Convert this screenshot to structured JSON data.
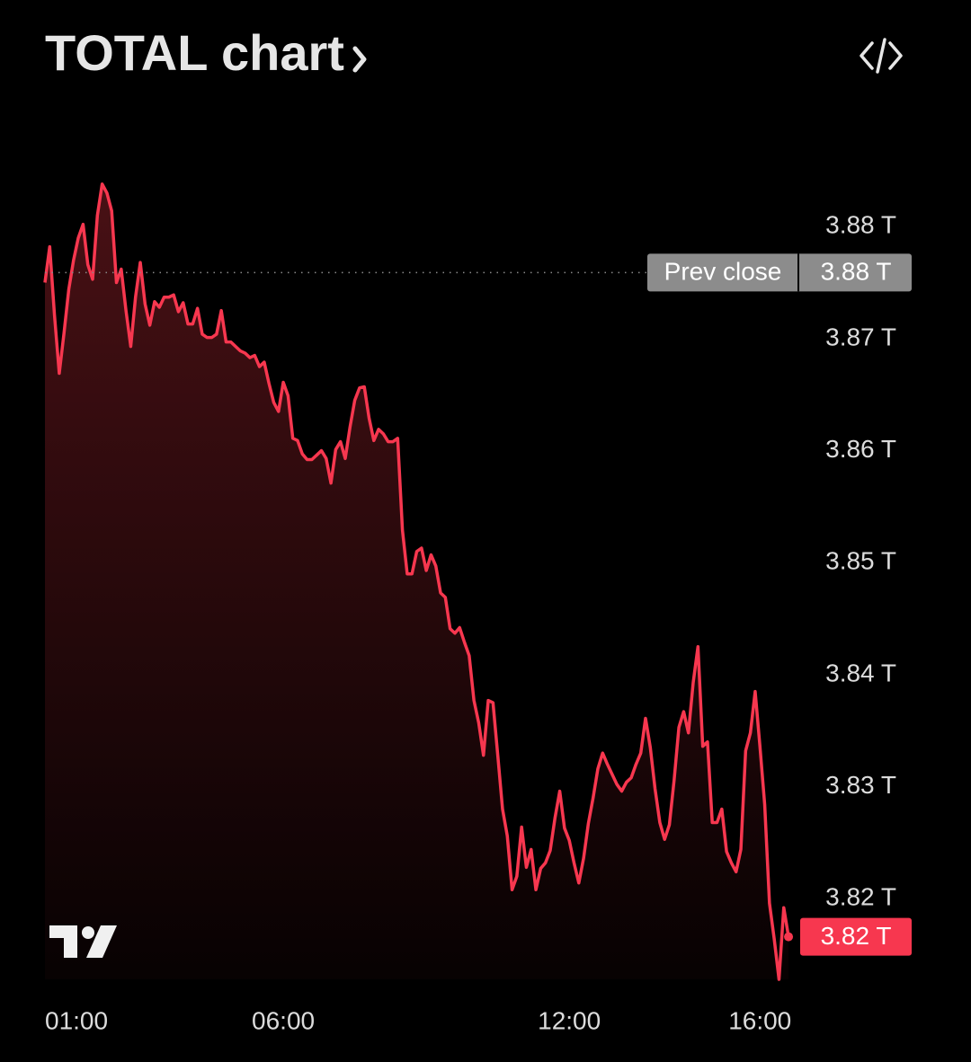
{
  "chart_data": {
    "type": "area",
    "title": "TOTAL chart",
    "color": "#f7374f",
    "x": [
      1,
      1.1,
      1.2,
      1.3,
      1.4,
      1.5,
      1.6,
      1.7,
      1.8,
      1.9,
      2,
      2.1,
      2.2,
      2.3,
      2.4,
      2.5,
      2.6,
      2.7,
      2.8,
      2.9,
      3,
      3.1,
      3.2,
      3.3,
      3.4,
      3.5,
      3.6,
      3.7,
      3.8,
      3.9,
      4,
      4.1,
      4.2,
      4.3,
      4.4,
      4.5,
      4.6,
      4.7,
      4.8,
      4.9,
      5,
      5.1,
      5.2,
      5.3,
      5.4,
      5.5,
      5.6,
      5.7,
      5.8,
      5.9,
      6,
      6.1,
      6.2,
      6.3,
      6.4,
      6.5,
      6.6,
      6.7,
      6.8,
      6.9,
      7,
      7.1,
      7.2,
      7.3,
      7.4,
      7.5,
      7.6,
      7.7,
      7.8,
      7.9,
      8,
      8.1,
      8.2,
      8.3,
      8.4,
      8.5,
      8.6,
      8.7,
      8.8,
      8.9,
      9,
      9.1,
      9.2,
      9.3,
      9.4,
      9.5,
      9.6,
      9.7,
      9.8,
      9.9,
      10,
      10.1,
      10.2,
      10.3,
      10.4,
      10.5,
      10.6,
      10.7,
      10.8,
      10.9,
      11,
      11.1,
      11.2,
      11.3,
      11.4,
      11.5,
      11.6,
      11.7,
      11.8,
      11.9,
      12,
      12.1,
      12.2,
      12.3,
      12.4,
      12.5,
      12.6,
      12.7,
      12.8,
      12.9,
      13,
      13.1,
      13.2,
      13.3,
      13.4,
      13.5,
      13.6,
      13.7,
      13.8,
      13.9,
      14,
      14.1,
      14.2,
      14.3,
      14.4,
      14.5,
      14.6,
      14.7,
      14.8,
      14.9,
      15,
      15.1,
      15.2,
      15.3,
      15.4,
      15.5,
      15.6,
      15.7,
      15.8,
      15.9,
      16,
      16.1,
      16.2,
      16.3,
      16.4,
      16.5,
      16.6
    ],
    "values": [
      3.875,
      3.8782,
      3.8721,
      3.8669,
      3.8705,
      3.8744,
      3.877,
      3.879,
      3.8802,
      3.8766,
      3.8753,
      3.881,
      3.8838,
      3.883,
      3.8814,
      3.875,
      3.8762,
      3.8725,
      3.8693,
      3.8737,
      3.8768,
      3.8731,
      3.8712,
      3.8733,
      3.8728,
      3.8737,
      3.8737,
      3.8739,
      3.8724,
      3.8732,
      3.8713,
      3.8713,
      3.8727,
      3.8704,
      3.8701,
      3.8701,
      3.8704,
      3.8725,
      3.8697,
      3.8697,
      3.8693,
      3.8689,
      3.8687,
      3.8683,
      3.8685,
      3.8675,
      3.8679,
      3.866,
      3.8643,
      3.8635,
      3.8661,
      3.8649,
      3.8611,
      3.8609,
      3.8597,
      3.8592,
      3.8592,
      3.8596,
      3.86,
      3.8593,
      3.8571,
      3.8601,
      3.8608,
      3.8593,
      3.8621,
      3.8645,
      3.8656,
      3.8657,
      3.8629,
      3.8609,
      3.8619,
      3.8615,
      3.8608,
      3.8608,
      3.8611,
      3.8529,
      3.849,
      3.849,
      3.851,
      3.8513,
      3.8493,
      3.8507,
      3.8497,
      3.8473,
      3.8469,
      3.8441,
      3.8437,
      3.8442,
      3.8429,
      3.8417,
      3.8377,
      3.8357,
      3.8328,
      3.8377,
      3.8375,
      3.8328,
      3.828,
      3.8256,
      3.8208,
      3.822,
      3.8264,
      3.8228,
      3.8244,
      3.8208,
      3.8227,
      3.8232,
      3.8243,
      3.8272,
      3.8296,
      3.8263,
      3.8252,
      3.8232,
      3.8214,
      3.8236,
      3.8267,
      3.829,
      3.8316,
      3.833,
      3.832,
      3.8311,
      3.8302,
      3.8296,
      3.8304,
      3.8308,
      3.832,
      3.833,
      3.8361,
      3.8335,
      3.8298,
      3.8268,
      3.8253,
      3.8266,
      3.8306,
      3.8353,
      3.8367,
      3.8348,
      3.8393,
      3.8425,
      3.8336,
      3.834,
      3.8268,
      3.8268,
      3.828,
      3.8242,
      3.8232,
      3.8224,
      3.8244,
      3.8332,
      3.8348,
      3.8385,
      3.8336,
      3.8284,
      3.8196,
      3.8164,
      3.8128,
      3.8192,
      3.8166
    ],
    "last_label": "3.82 T",
    "prev_close": {
      "name": "Prev close",
      "value": 3.8759,
      "label": "3.88 T"
    },
    "xlim": [
      1,
      16.75
    ],
    "ylim": [
      3.8128,
      3.889
    ],
    "xticks": [
      {
        "value": 1,
        "label": "01:00"
      },
      {
        "value": 6,
        "label": "06:00"
      },
      {
        "value": 12,
        "label": "12:00"
      },
      {
        "value": 16,
        "label": "16:00"
      }
    ],
    "yticks": [
      {
        "value": 3.82,
        "label": "3.82 T"
      },
      {
        "value": 3.83,
        "label": "3.83 T"
      },
      {
        "value": 3.84,
        "label": "3.84 T"
      },
      {
        "value": 3.85,
        "label": "3.85 T"
      },
      {
        "value": 3.86,
        "label": "3.86 T"
      },
      {
        "value": 3.87,
        "label": "3.87 T"
      },
      {
        "value": 3.88,
        "label": "3.88 T"
      }
    ]
  }
}
